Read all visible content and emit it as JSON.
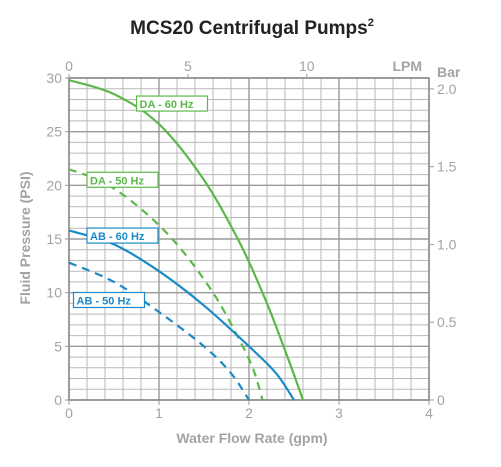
{
  "chart_data": {
    "type": "line",
    "title": "MCS20 Centrifugal Pumps",
    "title_superscript": "2",
    "xlabel": "Water Flow Rate (gpm)",
    "ylabel": "Fluid Pressure (PSI)",
    "xlim": [
      0,
      4
    ],
    "ylim": [
      0,
      30
    ],
    "x_ticks": [
      0,
      1,
      2,
      3,
      4
    ],
    "y_ticks": [
      0,
      5,
      10,
      15,
      20,
      25,
      30
    ],
    "top_axis": {
      "label": "LPM",
      "lim": [
        0,
        15.14
      ],
      "ticks": [
        0,
        5,
        10
      ]
    },
    "right_axis": {
      "label": "Bar",
      "lim": [
        0,
        2.07
      ],
      "ticks": [
        "0",
        "0.5",
        "1.0",
        "1.5",
        "2.0"
      ]
    },
    "grid": true,
    "series": [
      {
        "name": "DA - 60 Hz",
        "color": "#5cb84a",
        "dashed": false,
        "x": [
          0,
          0.5,
          1.0,
          1.5,
          1.9,
          2.2,
          2.45,
          2.6
        ],
        "y": [
          29.8,
          28.5,
          25.7,
          20.5,
          14.6,
          9.0,
          3.5,
          0
        ]
      },
      {
        "name": "DA - 50 Hz",
        "color": "#5cb84a",
        "dashed": true,
        "x": [
          0,
          0.4,
          0.8,
          1.2,
          1.6,
          1.9,
          2.05,
          2.15
        ],
        "y": [
          21.5,
          20.2,
          17.8,
          14.5,
          10.0,
          5.5,
          2.8,
          0
        ]
      },
      {
        "name": "AB - 60 Hz",
        "color": "#1b8ac6",
        "dashed": false,
        "x": [
          0,
          0.5,
          1.0,
          1.5,
          2.0,
          2.3,
          2.5
        ],
        "y": [
          15.8,
          14.5,
          12.0,
          8.8,
          5.0,
          2.5,
          0
        ]
      },
      {
        "name": "AB - 50 Hz",
        "color": "#1b8ac6",
        "dashed": true,
        "x": [
          0,
          0.5,
          1.0,
          1.5,
          1.8,
          2.0
        ],
        "y": [
          12.8,
          11.0,
          8.2,
          5.0,
          2.5,
          0
        ]
      }
    ],
    "legend_placement": "inline labels on curves"
  }
}
